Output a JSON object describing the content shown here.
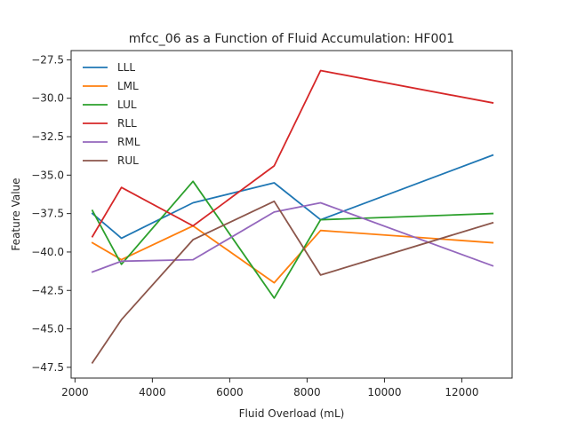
{
  "chart_data": {
    "type": "line",
    "title": "mfcc_06 as a Function of Fluid Accumulation: HF001",
    "xlabel": "Fluid Overload (mL)",
    "ylabel": "Feature Value",
    "xlim": [
      1900,
      13300
    ],
    "ylim": [
      -48.2,
      -26.9
    ],
    "xticks": [
      2000,
      4000,
      6000,
      8000,
      10000,
      12000
    ],
    "yticks": [
      -47.5,
      -45.0,
      -42.5,
      -40.0,
      -37.5,
      -35.0,
      -32.5,
      -30.0,
      -27.5
    ],
    "xtick_labels": [
      "2000",
      "4000",
      "6000",
      "8000",
      "10000",
      "12000"
    ],
    "ytick_labels": [
      "−47.5",
      "−45.0",
      "−42.5",
      "−40.0",
      "−37.5",
      "−35.0",
      "−32.5",
      "−30.0",
      "−27.5"
    ],
    "grid": false,
    "legend": "top-left",
    "x": [
      2450,
      3200,
      5050,
      7150,
      8350,
      12800
    ],
    "series": [
      {
        "name": "LLL",
        "color": "#1f77b4",
        "values": [
          -37.5,
          -39.1,
          -36.8,
          -35.5,
          -37.9,
          -33.7
        ]
      },
      {
        "name": "LML",
        "color": "#ff7f0e",
        "values": [
          -39.4,
          -40.5,
          -38.3,
          -42.0,
          -38.6,
          -39.4
        ]
      },
      {
        "name": "LUL",
        "color": "#2ca02c",
        "values": [
          -37.3,
          -40.8,
          -35.4,
          -43.0,
          -37.9,
          -37.5
        ]
      },
      {
        "name": "RLL",
        "color": "#d62728",
        "values": [
          -39.0,
          -35.8,
          -38.3,
          -34.4,
          -28.2,
          -30.3
        ]
      },
      {
        "name": "RML",
        "color": "#9467bd",
        "values": [
          -41.3,
          -40.6,
          -40.5,
          -37.4,
          -36.8,
          -40.9
        ]
      },
      {
        "name": "RUL",
        "color": "#8c564b",
        "values": [
          -47.2,
          -44.4,
          -39.2,
          -36.7,
          -41.5,
          -38.1
        ]
      }
    ]
  }
}
